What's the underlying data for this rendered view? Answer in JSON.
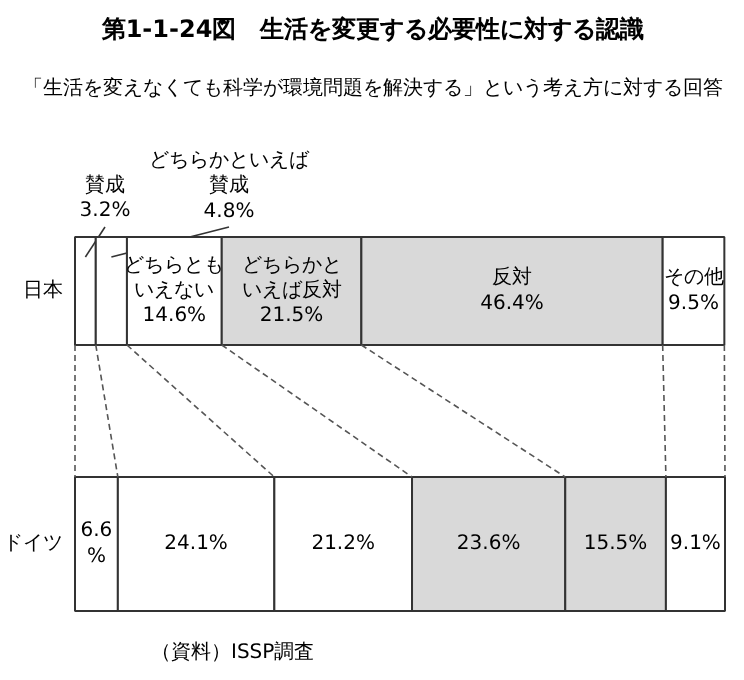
{
  "chart_data": {
    "type": "bar",
    "orientation": "horizontal",
    "stacked": true,
    "title": "第1-1-24図　生活を変更する必要性に対する認識",
    "subtitle": "「生活を変えなくても科学が環境問題を解決する」という考え方に対する回答",
    "categories": [
      "日本",
      "ドイツ"
    ],
    "series": [
      {
        "name": "賛成",
        "color": "#ffffff",
        "values": [
          3.2,
          6.6
        ],
        "value_labels": [
          "3.2%",
          "6.6%"
        ]
      },
      {
        "name": "どちらかといえば賛成",
        "color": "#ffffff",
        "values": [
          4.8,
          24.1
        ],
        "value_labels": [
          "4.8%",
          "24.1%"
        ]
      },
      {
        "name": "どちらともいえない",
        "color": "#ffffff",
        "values": [
          14.6,
          21.2
        ],
        "value_labels": [
          "14.6%",
          "21.2%"
        ]
      },
      {
        "name": "どちらかといえば反対",
        "color": "#d9d9d9",
        "values": [
          21.5,
          23.6
        ],
        "value_labels": [
          "21.5%",
          "23.6%"
        ]
      },
      {
        "name": "反対",
        "color": "#d9d9d9",
        "values": [
          46.4,
          15.5
        ],
        "value_labels": [
          "46.4%",
          "15.5%"
        ]
      },
      {
        "name": "その他",
        "color": "#ffffff",
        "values": [
          9.5,
          9.1
        ],
        "value_labels": [
          "9.5%",
          "9.1%"
        ]
      }
    ],
    "annotations": [
      "（資料）ISSP調査"
    ]
  }
}
